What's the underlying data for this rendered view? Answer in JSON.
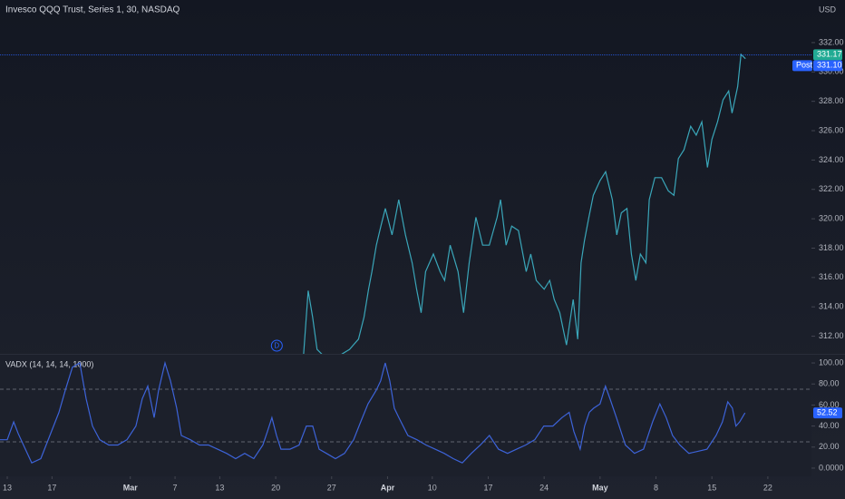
{
  "chart_data": [
    {
      "type": "line",
      "title": "Invesco QQQ Trust, Series 1, 30, NASDAQ",
      "unit": "USD",
      "color": "#3aa6b9",
      "x": [
        26.5,
        26.9,
        27.3,
        27.7,
        28.5,
        29.3,
        30.6,
        31.4,
        31.9,
        32.3,
        32.6,
        33.0,
        33.4,
        33.8,
        34.4,
        35.0,
        35.6,
        36.2,
        36.6,
        37.0,
        37.4,
        38.1,
        38.7,
        39.1,
        39.6,
        40.3,
        40.8,
        41.3,
        41.9,
        42.5,
        43.1,
        43.8,
        44.1,
        44.6,
        45.1,
        45.7,
        46.4,
        46.8,
        47.3,
        48.0,
        48.5,
        48.9,
        49.4,
        50.0,
        50.6,
        51.0,
        51.3,
        51.6,
        52.0,
        52.4,
        53.0,
        53.5,
        54.1,
        54.5,
        54.9,
        55.4,
        55.8,
        56.2,
        56.6,
        57.1,
        57.4,
        57.9,
        58.5,
        59.1,
        59.6,
        60.0,
        60.5,
        61.1,
        61.6,
        62.1,
        62.6,
        63.0,
        63.5,
        64.0,
        64.5,
        64.8,
        65.3,
        65.6,
        66.0
      ],
      "values": [
        310.8,
        315.1,
        313.3,
        311.1,
        310.5,
        310.5,
        311.1,
        311.8,
        313.3,
        315.2,
        316.4,
        318.2,
        319.5,
        320.7,
        318.9,
        321.3,
        318.9,
        317.0,
        315.2,
        313.6,
        316.4,
        317.6,
        316.4,
        315.8,
        318.2,
        316.4,
        313.6,
        317.0,
        320.1,
        318.2,
        318.2,
        320.1,
        321.3,
        318.2,
        319.5,
        319.2,
        316.4,
        317.6,
        315.8,
        315.2,
        315.8,
        314.5,
        313.6,
        311.4,
        314.5,
        311.8,
        317.0,
        318.5,
        320.1,
        321.6,
        322.6,
        323.2,
        321.3,
        318.9,
        320.4,
        320.7,
        317.6,
        315.8,
        317.6,
        317.0,
        321.3,
        322.8,
        322.8,
        321.9,
        321.6,
        324.1,
        324.7,
        326.3,
        325.7,
        326.6,
        323.5,
        325.4,
        326.6,
        328.1,
        328.7,
        327.2,
        329.0,
        331.2,
        330.9
      ],
      "ylim": [
        310.8,
        334.9
      ],
      "yticks": [
        {
          "value": 312,
          "label": "312.00"
        },
        {
          "value": 314,
          "label": "314.00"
        },
        {
          "value": 316,
          "label": "316.00"
        },
        {
          "value": 318,
          "label": "318.00"
        },
        {
          "value": 320,
          "label": "320.00"
        },
        {
          "value": 322,
          "label": "322.00"
        },
        {
          "value": 324,
          "label": "324.00"
        },
        {
          "value": 326,
          "label": "326.00"
        },
        {
          "value": 328,
          "label": "328.00"
        },
        {
          "value": 330,
          "label": "330.00"
        },
        {
          "value": 332,
          "label": "332.00"
        }
      ],
      "last_price": 331.17,
      "post_label": "Post",
      "post_price": {
        "value": 331.1,
        "label": "331.10"
      },
      "annotation": {
        "x": 24.1,
        "text": "D"
      }
    },
    {
      "type": "line",
      "title": "VADX (14, 14, 14, 1000)",
      "color": "#3d63d8",
      "x": [
        -0.65,
        0,
        0.57,
        0.97,
        1.62,
        2.19,
        3.0,
        3.81,
        4.62,
        5.19,
        5.83,
        6.48,
        7.05,
        7.62,
        8.27,
        9.08,
        9.89,
        10.7,
        11.5,
        12.07,
        12.56,
        13.13,
        13.53,
        14.1,
        14.59,
        15.15,
        15.56,
        16.37,
        17.18,
        17.99,
        18.8,
        19.61,
        20.42,
        21.23,
        22.04,
        22.85,
        23.26,
        23.66,
        24.07,
        24.47,
        25.28,
        26.09,
        26.74,
        27.31,
        27.88,
        28.53,
        29.34,
        30.15,
        30.96,
        31.6,
        32.25,
        32.98,
        33.39,
        33.79,
        34.2,
        34.6,
        35.01,
        35.82,
        36.63,
        37.44,
        38.25,
        39.06,
        39.87,
        40.68,
        41.49,
        42.3,
        43.11,
        43.92,
        44.73,
        45.54,
        46.35,
        47.16,
        47.97,
        48.78,
        49.59,
        50.24,
        50.65,
        51.22,
        51.62,
        52.03,
        52.43,
        53.0,
        53.48,
        53.89,
        54.46,
        55.27,
        56.08,
        56.89,
        57.7,
        58.35,
        58.91,
        59.48,
        60.13,
        60.94,
        61.75,
        62.56,
        63.37,
        63.94,
        64.42,
        64.83,
        65.15,
        65.48,
        65.96
      ],
      "values": [
        27,
        27,
        44,
        33,
        18,
        5,
        9,
        31,
        53,
        74,
        96,
        100,
        66,
        40,
        27,
        22,
        22,
        27,
        40,
        66,
        78,
        48,
        74,
        100,
        83,
        57,
        31,
        27,
        22,
        22,
        18,
        14,
        9,
        14,
        9,
        22,
        35,
        48,
        31,
        18,
        18,
        22,
        40,
        40,
        18,
        14,
        9,
        14,
        27,
        44,
        61,
        74,
        83,
        100,
        83,
        57,
        48,
        31,
        27,
        22,
        18,
        14,
        9,
        5,
        14,
        22,
        31,
        18,
        14,
        18,
        22,
        27,
        40,
        40,
        48,
        53,
        35,
        18,
        40,
        53,
        57,
        61,
        78,
        66,
        48,
        22,
        14,
        18,
        44,
        61,
        48,
        31,
        22,
        14,
        16,
        18,
        31,
        44,
        63,
        57,
        40,
        44,
        52.52
      ],
      "ylim": [
        -7.8,
        107.8
      ],
      "yticks": [
        {
          "value": 0,
          "label": "0.0000"
        },
        {
          "value": 20,
          "label": "20.00"
        },
        {
          "value": 40,
          "label": "40.00"
        },
        {
          "value": 60,
          "label": "60.00"
        },
        {
          "value": 80,
          "label": "80.00"
        },
        {
          "value": 100,
          "label": "100.00"
        }
      ],
      "levels": [
        25,
        75
      ],
      "xlim": [
        -0.65,
        71.9
      ],
      "xticks": [
        {
          "value": 0,
          "label": "13"
        },
        {
          "value": 4,
          "label": "17"
        },
        {
          "value": 11,
          "label": "Mar"
        },
        {
          "value": 15,
          "label": "7"
        },
        {
          "value": 19,
          "label": "13"
        },
        {
          "value": 24,
          "label": "20"
        },
        {
          "value": 29,
          "label": "27"
        },
        {
          "value": 34,
          "label": "Apr"
        },
        {
          "value": 38,
          "label": "10"
        },
        {
          "value": 43,
          "label": "17"
        },
        {
          "value": 48,
          "label": "24"
        },
        {
          "value": 53,
          "label": "May"
        },
        {
          "value": 58,
          "label": "8"
        },
        {
          "value": 63,
          "label": "15"
        },
        {
          "value": 68,
          "label": "22"
        }
      ],
      "last_value": {
        "value": 52.52,
        "label": "52.52"
      }
    }
  ]
}
